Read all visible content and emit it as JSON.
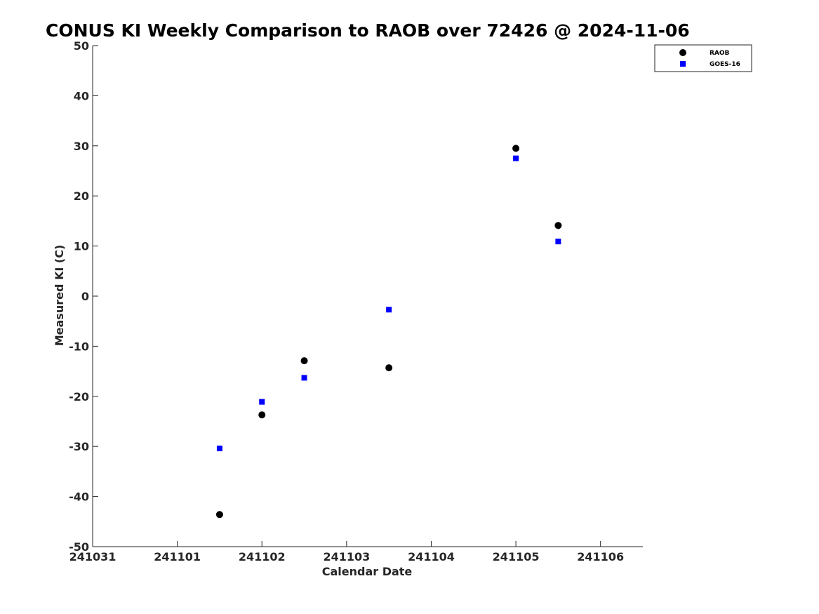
{
  "chart_data": {
    "type": "scatter",
    "title": "CONUS KI Weekly Comparison to RAOB over 72426 @ 2024-11-06",
    "xlabel": "Calendar Date",
    "ylabel": "Measured KI (C)",
    "x_start_label": "241031",
    "x_tick_labels": [
      "241031",
      "241101",
      "241102",
      "241103",
      "241104",
      "241105",
      "241106"
    ],
    "x_tick_values": [
      0,
      1,
      2,
      3,
      4,
      5,
      6
    ],
    "xlim": [
      0,
      6.5
    ],
    "ylim": [
      -50,
      50
    ],
    "y_ticks": [
      50,
      40,
      30,
      20,
      10,
      0,
      -10,
      -20,
      -30,
      -40,
      -50
    ],
    "grid": false,
    "legend_position": "top-right",
    "series": [
      {
        "name": "RAOB",
        "marker": "circle",
        "color": "#000000",
        "points": [
          {
            "x": 1.5,
            "y": -43.6
          },
          {
            "x": 2.0,
            "y": -23.7
          },
          {
            "x": 2.5,
            "y": -12.9
          },
          {
            "x": 3.5,
            "y": -14.3
          },
          {
            "x": 5.0,
            "y": 29.5
          },
          {
            "x": 5.5,
            "y": 14.1
          }
        ]
      },
      {
        "name": "GOES-16",
        "marker": "square",
        "color": "#0000ff",
        "points": [
          {
            "x": 1.5,
            "y": -30.4
          },
          {
            "x": 2.0,
            "y": -21.1
          },
          {
            "x": 2.5,
            "y": -16.3
          },
          {
            "x": 3.5,
            "y": -2.7
          },
          {
            "x": 5.0,
            "y": 27.5
          },
          {
            "x": 5.5,
            "y": 10.9
          }
        ]
      }
    ]
  }
}
